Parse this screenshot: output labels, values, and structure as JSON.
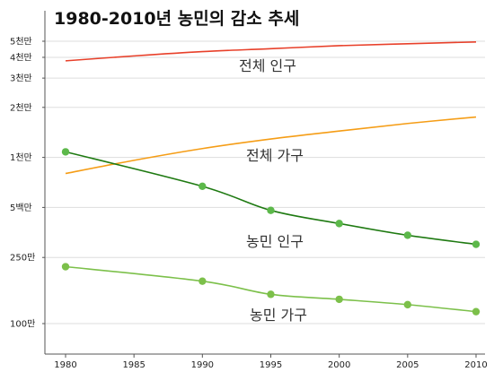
{
  "chart_data": {
    "type": "line",
    "title": "1980-2010년 농민의 감소 추세",
    "x_ticks": [
      1980,
      1985,
      1990,
      1995,
      2000,
      2005,
      2010
    ],
    "xlim": [
      1980,
      2010
    ],
    "y_scale": "log",
    "ylim": [
      80,
      7000
    ],
    "y_ticks": [
      {
        "value": 5000,
        "label": "5천만"
      },
      {
        "value": 4000,
        "label": "4천만"
      },
      {
        "value": 3000,
        "label": "3천만"
      },
      {
        "value": 2000,
        "label": "2천만"
      },
      {
        "value": 1000,
        "label": "1천만"
      },
      {
        "value": 500,
        "label": "5백만"
      },
      {
        "value": 250,
        "label": "250만"
      },
      {
        "value": 100,
        "label": "100만"
      }
    ],
    "grid": true,
    "series": [
      {
        "name": "전체 인구",
        "color": "#e8402a",
        "markers": false,
        "x": [
          1980,
          1985,
          1990,
          1995,
          2000,
          2005,
          2010
        ],
        "values": [
          3810,
          4080,
          4330,
          4510,
          4700,
          4830,
          4950
        ]
      },
      {
        "name": "전체 가구",
        "color": "#f59d16",
        "markers": false,
        "x": [
          1980,
          1985,
          1990,
          1995,
          2000,
          2005,
          2010
        ],
        "values": [
          800,
          960,
          1130,
          1290,
          1440,
          1600,
          1750
        ]
      },
      {
        "name": "농민 인구",
        "color": "#1f7a12",
        "markers": true,
        "x": [
          1980,
          1990,
          1995,
          2000,
          2005,
          2010
        ],
        "values": [
          1080,
          670,
          480,
          400,
          340,
          300
        ]
      },
      {
        "name": "농민 가구",
        "color": "#7cc04a",
        "markers": true,
        "x": [
          1980,
          1990,
          1995,
          2000,
          2005,
          2010
        ],
        "values": [
          220,
          180,
          150,
          140,
          130,
          118
        ]
      }
    ]
  }
}
